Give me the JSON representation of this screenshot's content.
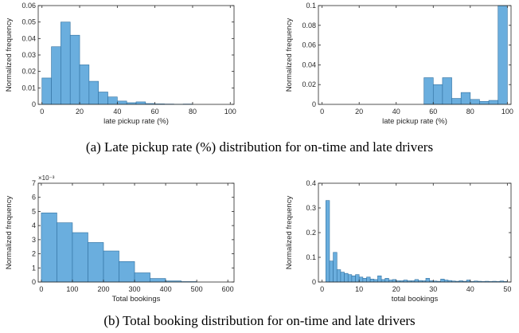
{
  "captions": {
    "a": "(a) Late pickup rate (%) distribution for on-time and late drivers",
    "b": "(b) Total booking distribution for on-time and late drivers"
  },
  "chart_data": [
    {
      "id": "a_left",
      "type": "bar",
      "title": "",
      "xlabel": "late pickup rate (%)",
      "ylabel": "Normalized frequency",
      "xlim": [
        -2,
        102
      ],
      "ylim": [
        0,
        0.06
      ],
      "xticks": [
        0,
        20,
        40,
        60,
        80,
        100
      ],
      "yticks": [
        0,
        0.01,
        0.02,
        0.03,
        0.04,
        0.05,
        0.06
      ],
      "ytick_labels": [
        "0",
        "0.01",
        "0.02",
        "0.03",
        "0.04",
        "0.05",
        "0.06"
      ],
      "bin_edges": [
        0,
        5,
        10,
        15,
        20,
        25,
        30,
        35,
        40,
        45,
        50,
        55,
        60,
        65,
        70,
        75,
        80,
        85,
        90,
        95,
        100
      ],
      "values": [
        0.016,
        0.035,
        0.05,
        0.042,
        0.024,
        0.014,
        0.0075,
        0.0045,
        0.002,
        0.001,
        0.0015,
        0.0005,
        0.0003,
        0.0002,
        0.0001,
        0.0002,
        0,
        0,
        0,
        0
      ],
      "grid": false,
      "legend": "none"
    },
    {
      "id": "a_right",
      "type": "bar",
      "title": "",
      "xlabel": "late pickup rate (%)",
      "ylabel": "Normalized frequency",
      "xlim": [
        -2,
        102
      ],
      "ylim": [
        0,
        0.1
      ],
      "xticks": [
        0,
        20,
        40,
        60,
        80,
        100
      ],
      "yticks": [
        0,
        0.02,
        0.04,
        0.06,
        0.08,
        0.1
      ],
      "ytick_labels": [
        "0",
        "0.02",
        "0.04",
        "0.06",
        "0.08",
        "0.1"
      ],
      "bin_edges": [
        0,
        5,
        10,
        15,
        20,
        25,
        30,
        35,
        40,
        45,
        50,
        55,
        60,
        65,
        70,
        75,
        80,
        85,
        90,
        95,
        100
      ],
      "values": [
        0,
        0,
        0,
        0,
        0,
        0,
        0,
        0,
        0,
        0,
        0,
        0.027,
        0.02,
        0.027,
        0.006,
        0.012,
        0.005,
        0.003,
        0.004,
        0.1
      ],
      "grid": false,
      "legend": "none"
    },
    {
      "id": "b_left",
      "type": "bar",
      "title": "",
      "xlabel": "Total bookings",
      "ylabel": "Normalized frequency",
      "exponent_label": "×10⁻³",
      "xlim": [
        -10,
        620
      ],
      "ylim": [
        0,
        7
      ],
      "xticks": [
        0,
        100,
        200,
        300,
        400,
        500,
        600
      ],
      "yticks": [
        0,
        1,
        2,
        3,
        4,
        5,
        6,
        7
      ],
      "ytick_labels": [
        "0",
        "1",
        "2",
        "3",
        "4",
        "5",
        "6",
        "7"
      ],
      "bin_edges": [
        0,
        50,
        100,
        150,
        200,
        250,
        300,
        350,
        400,
        450,
        500,
        550,
        600
      ],
      "values": [
        4.9,
        4.2,
        3.5,
        2.8,
        2.2,
        1.45,
        0.65,
        0.25,
        0.08,
        0.03,
        0,
        0
      ],
      "grid": false,
      "legend": "none"
    },
    {
      "id": "b_right",
      "type": "bar",
      "title": "",
      "xlabel": "total bookings",
      "ylabel": "Normalized frequency",
      "xlim": [
        -1,
        51
      ],
      "ylim": [
        0,
        0.4
      ],
      "xticks": [
        0,
        10,
        20,
        30,
        40,
        50
      ],
      "yticks": [
        0,
        0.1,
        0.2,
        0.3,
        0.4
      ],
      "ytick_labels": [
        "0",
        "0.1",
        "0.2",
        "0.3",
        "0.4"
      ],
      "bin_edges": [
        1,
        2,
        3,
        4,
        5,
        6,
        7,
        8,
        9,
        10,
        11,
        12,
        13,
        14,
        15,
        16,
        17,
        18,
        19,
        20,
        21,
        22,
        23,
        24,
        25,
        26,
        27,
        28,
        29,
        30,
        31,
        32,
        33,
        34,
        35,
        36,
        37,
        38,
        39,
        40,
        41,
        42,
        43,
        44,
        45,
        46,
        47,
        48,
        49,
        50
      ],
      "values": [
        0.33,
        0.085,
        0.12,
        0.05,
        0.04,
        0.035,
        0.03,
        0.025,
        0.03,
        0.02,
        0.015,
        0.02,
        0.012,
        0.01,
        0.025,
        0.01,
        0.015,
        0.008,
        0.01,
        0.005,
        0.005,
        0.008,
        0.005,
        0.005,
        0.01,
        0.006,
        0.005,
        0.015,
        0.005,
        0.004,
        0.003,
        0.012,
        0.008,
        0.006,
        0.004,
        0.003,
        0.005,
        0.003,
        0.008,
        0.002,
        0.004,
        0.003,
        0.002,
        0.003,
        0.002,
        0.003,
        0.002,
        0.004,
        0.002
      ],
      "grid": false,
      "legend": "none"
    }
  ],
  "colors": {
    "bar_fill": "#6aaede",
    "bar_edge": "#2f6f9f",
    "axis": "#262626",
    "text": "#262626"
  }
}
